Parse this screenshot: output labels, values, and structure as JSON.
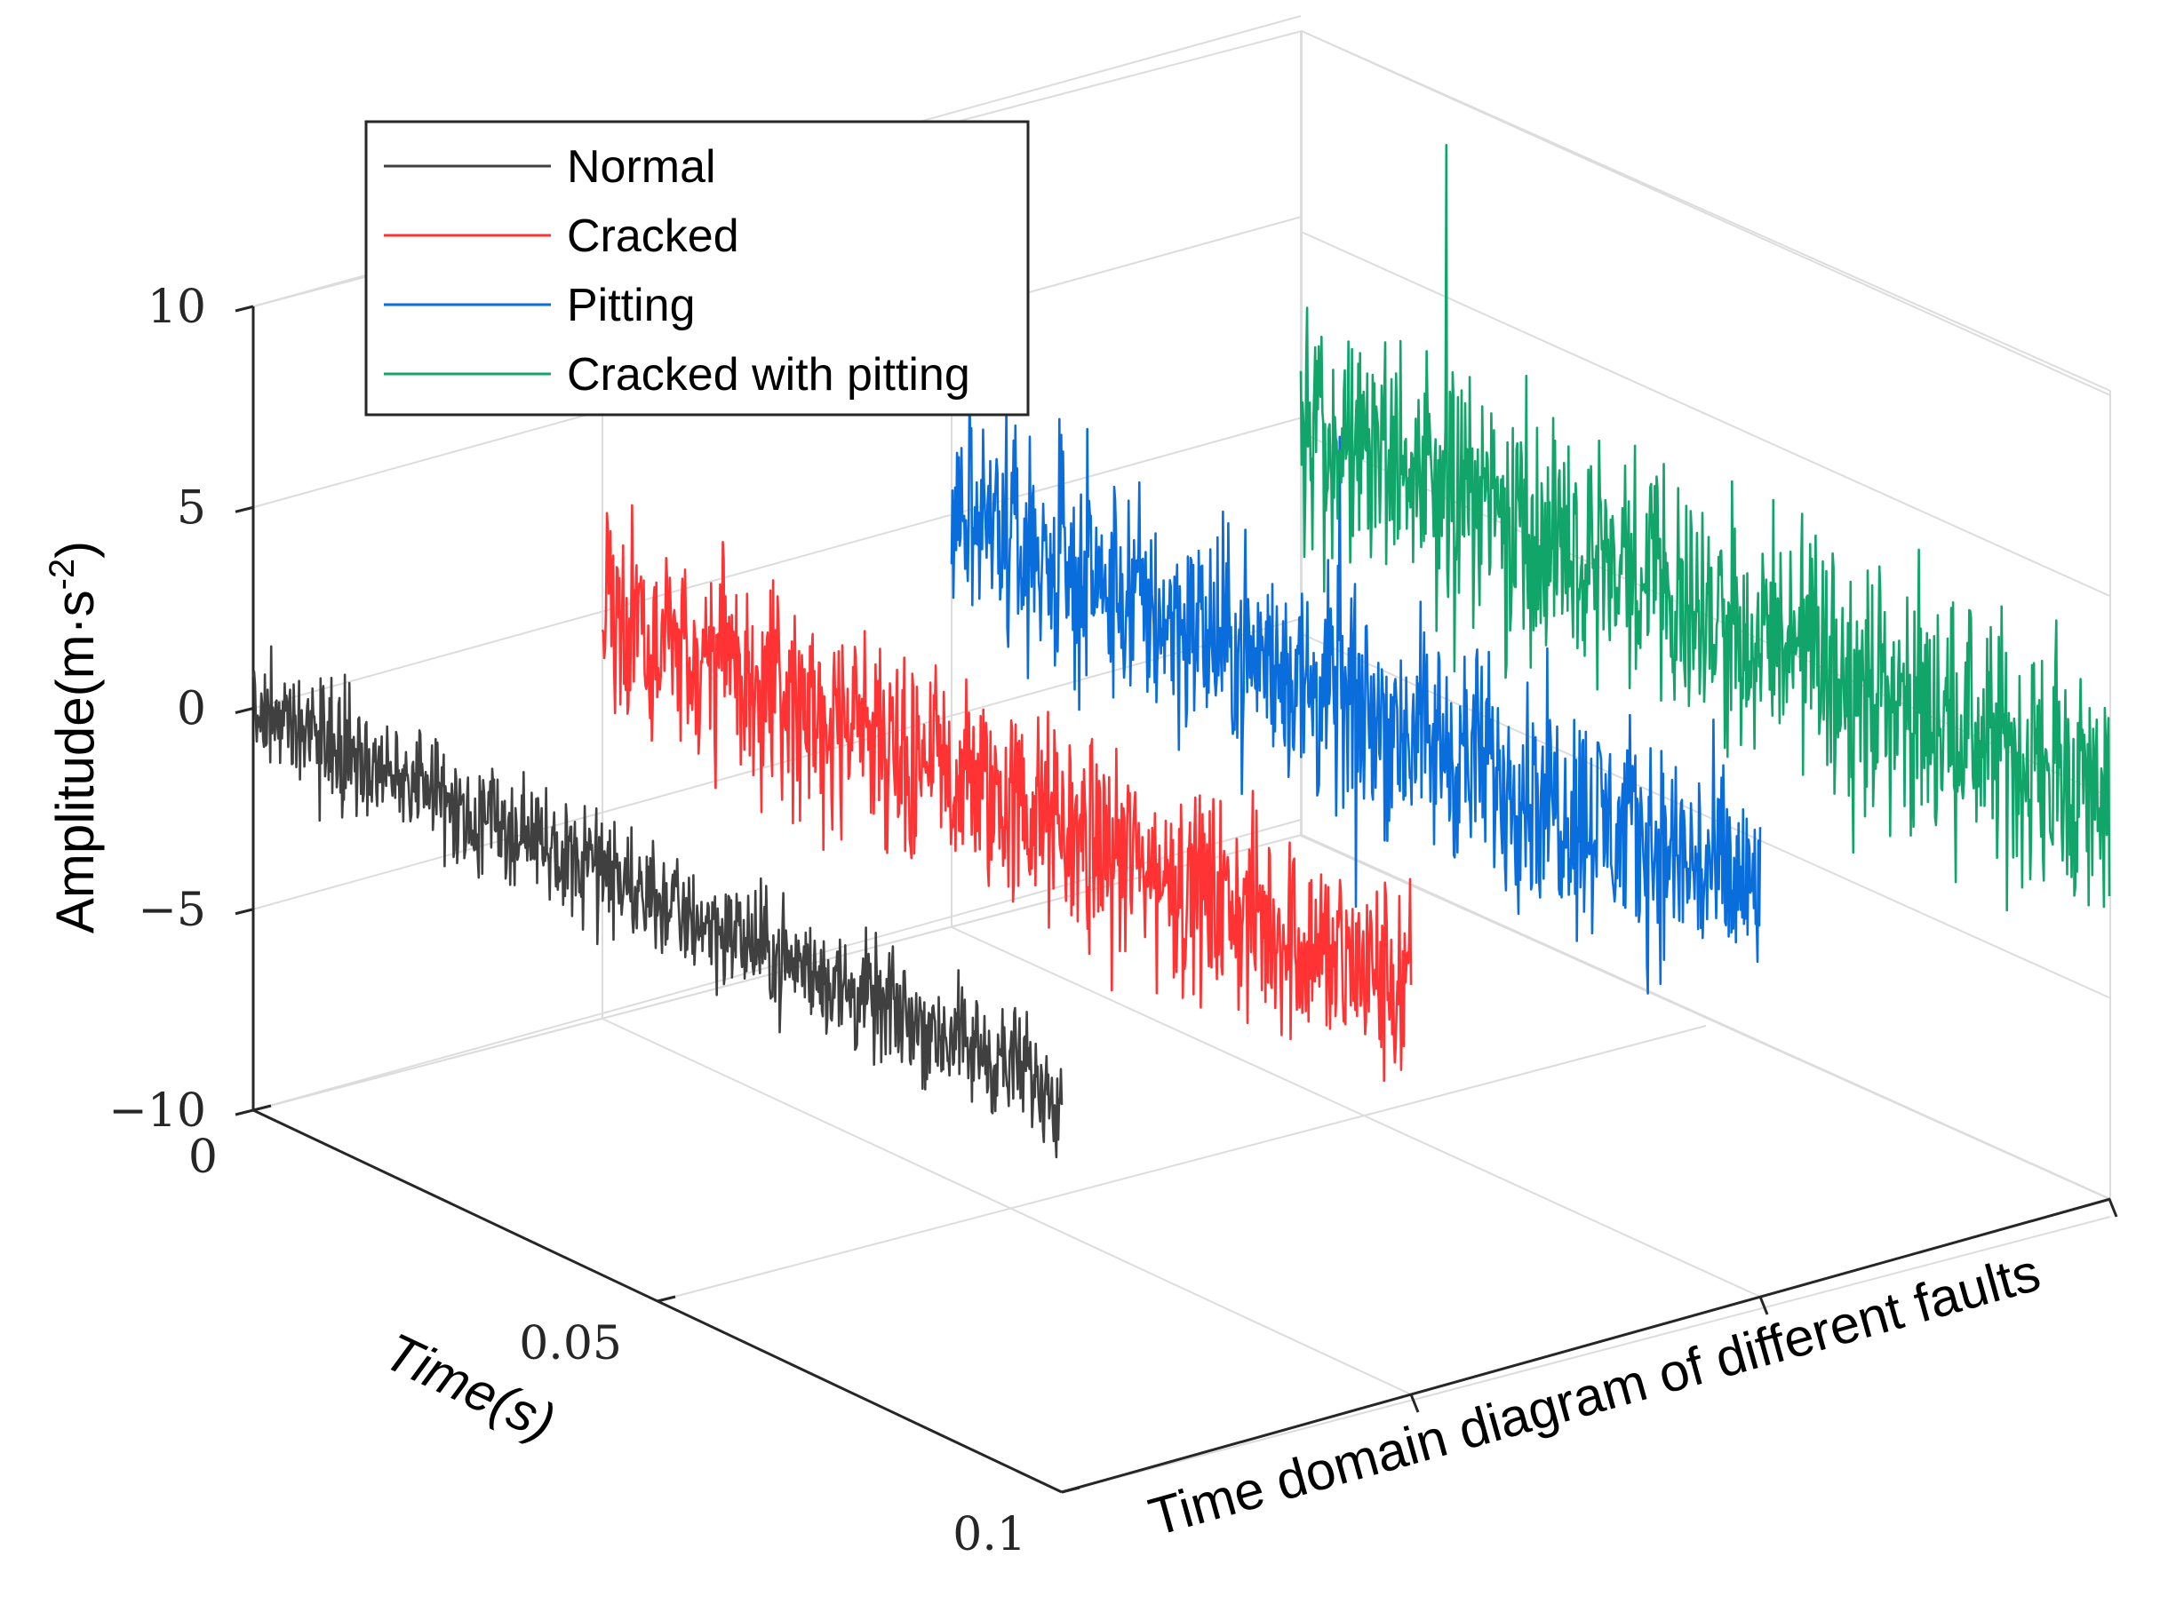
{
  "chart_data": {
    "type": "line",
    "title": "",
    "projection": "3d-waterfall",
    "x_axis": {
      "label": "Time(s)",
      "range": [
        0,
        0.1
      ],
      "ticks": [
        0,
        0.05,
        0.1
      ],
      "tick_labels": [
        "0",
        "0.05",
        "0.1"
      ]
    },
    "y_axis": {
      "label": "Time domain diagram of different faults",
      "categories": [
        "Normal",
        "Cracked",
        "Pitting",
        "Cracked with pitting"
      ]
    },
    "z_axis": {
      "label_base": "Amplitude(m·s",
      "label_exp": "-2",
      "label_end": ")",
      "range": [
        -10,
        10
      ],
      "ticks": [
        -10,
        -5,
        0,
        5,
        10
      ],
      "tick_labels": [
        "−10",
        "−5",
        "0",
        "5",
        "10"
      ]
    },
    "grid": true,
    "legend": {
      "placement": "top-left",
      "entries": [
        "Normal",
        "Cracked",
        "Pitting",
        "Cracked with pitting"
      ]
    },
    "series": [
      {
        "name": "Normal",
        "color": "#404040",
        "center": 0.0,
        "noise": 0.9,
        "spikes": []
      },
      {
        "name": "Cracked",
        "color": "#ff3333",
        "center": 0.0,
        "noise": 1.6,
        "spikes": []
      },
      {
        "name": "Pitting",
        "color": "#0a6ddc",
        "center": 0.0,
        "noise": 1.7,
        "spikes": [
          {
            "t": 0.048,
            "amp": 6.5
          },
          {
            "t": 0.05,
            "amp": -5.0
          }
        ]
      },
      {
        "name": "Cracked with pitting",
        "color": "#12a56a",
        "center": 0.0,
        "noise": 1.9,
        "spikes": [
          {
            "t": 0.018,
            "amp": 8.5
          },
          {
            "t": 0.019,
            "amp": -4.5
          }
        ]
      }
    ]
  }
}
